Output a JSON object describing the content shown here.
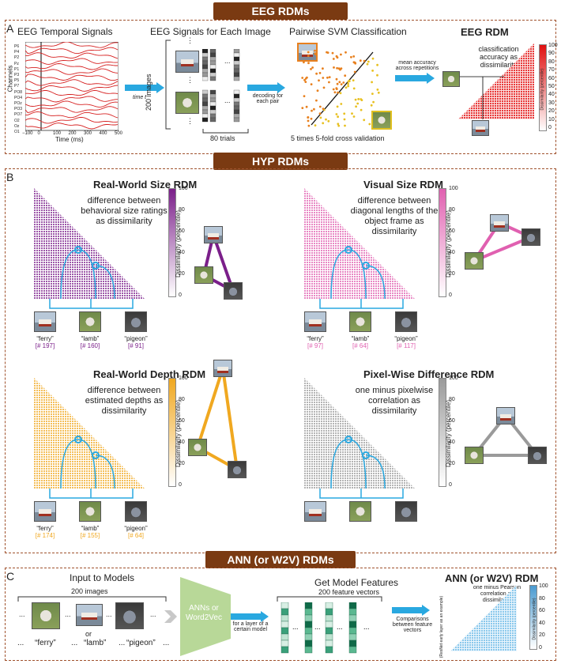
{
  "banners": {
    "eeg": "EEG RDMs",
    "hyp": "HYP RDMs",
    "ann": "ANN (or W2V) RDMs"
  },
  "panelA": {
    "label": "A",
    "temporal_title": "EEG Temporal Signals",
    "channels": [
      "P6",
      "P4",
      "P2",
      "Pz",
      "P1",
      "P3",
      "P5",
      "P7",
      "PO8",
      "PO4",
      "POz",
      "PO3",
      "PO7",
      "O2",
      "Oz",
      "O1"
    ],
    "channels_label": "Channels",
    "time_ticks": [
      "−100",
      "0",
      "100",
      "200",
      "300",
      "400",
      "500"
    ],
    "time_label": "Time (ms)",
    "time_arrow": "time t",
    "each_image_title": "EEG Signals for Each Image",
    "images_label": "200 images",
    "trials_label": "80 trials",
    "decoding_label": "decoding for each pair",
    "svm_title": "Pairwise SVM Classification",
    "svm_caption": "5 times 5-fold cross validation",
    "mean_label": "mean accuracy across repetitions",
    "rdm_title": "EEG RDM",
    "rdm_desc": "classification accuracy as dissimilarity",
    "cbar_ticks": [
      "100",
      "90",
      "80",
      "70",
      "60",
      "50",
      "40",
      "30",
      "20",
      "10",
      "0"
    ],
    "cbar_label": "Dissimilarity (percentile)",
    "ellipsis": "⋮",
    "hellipsis": "..."
  },
  "panelB": {
    "label": "B",
    "cbar_ticks": [
      "100",
      "80",
      "60",
      "40",
      "20",
      "0"
    ],
    "cbar_label": "Dissimilarity (percentile)",
    "rdms": [
      {
        "title": "Real-World Size RDM",
        "desc": "difference between behavioral size ratings as dissimilarity",
        "color": "#7b1f8a",
        "items": [
          {
            "name": "“ferry”",
            "idx": "[# 197]"
          },
          {
            "name": "“lamb”",
            "idx": "[# 160]"
          },
          {
            "name": "“pigeon”",
            "idx": "[# 91]"
          }
        ]
      },
      {
        "title": "Visual Size RDM",
        "desc": "difference between diagonal lengths of the object frame as dissimilarity",
        "color": "#e060b0",
        "items": [
          {
            "name": "“ferry”",
            "idx": "[# 97]"
          },
          {
            "name": "“lamb”",
            "idx": "[# 64]"
          },
          {
            "name": "“pigeon”",
            "idx": "[# 117]"
          }
        ]
      },
      {
        "title": "Real-World Depth RDM",
        "desc": "difference between estimated depths as dissimilarity",
        "color": "#f0a820",
        "items": [
          {
            "name": "“ferry”",
            "idx": "[# 174]"
          },
          {
            "name": "“lamb”",
            "idx": "[# 155]"
          },
          {
            "name": "“pigeon”",
            "idx": "[# 64]"
          }
        ]
      },
      {
        "title": "Pixel-Wise Difference RDM",
        "desc": "one minus pixelwise correlation as dissimilarity",
        "color": "#9a9a9a",
        "items": []
      }
    ]
  },
  "panelC": {
    "label": "C",
    "input_title": "Input to Models",
    "images_label": "200 images",
    "or_label": "or",
    "words": [
      "“ferry”",
      "“lamb”",
      "“pigeon”"
    ],
    "ellipsis": "...",
    "model_label": "ANNs or Word2Vec",
    "layer_label": "for a layer of a certain model",
    "features_title": "Get Model Features",
    "features_count": "200 feature vectors",
    "compare_label": "Comparisons between feature vectors",
    "rdm_title": "ANN (or W2V) RDM",
    "rdm_desc": "one minus Pearson correlation as dissimilarity",
    "side_label": "(ResNet early layer as an example)",
    "cbar_ticks": [
      "100",
      "80",
      "60",
      "40",
      "20",
      "0"
    ],
    "cbar_label": "Dissimilarity (percentile)"
  },
  "colors": {
    "banner": "#7a3a12",
    "panel_border": "#a0522d",
    "eeg_trace": "#d62020",
    "arrow": "#29a8e0",
    "rdm_eeg": "#e02020",
    "rdm_ann": "#7ec0e8",
    "connector": "#29a8e0"
  }
}
